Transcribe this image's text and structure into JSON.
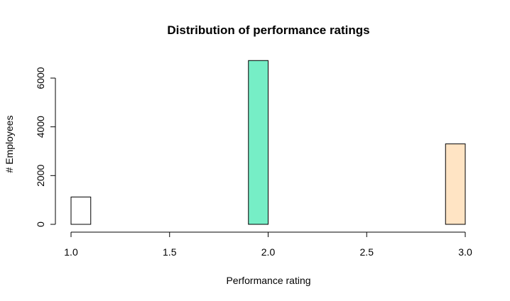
{
  "chart_data": {
    "type": "bar",
    "title": "Distribution of performance ratings",
    "xlabel": "Performance rating",
    "ylabel": "# Employees",
    "xlim": [
      1.0,
      3.0
    ],
    "ylim": [
      0,
      6000
    ],
    "xticks": [
      "1.0",
      "1.5",
      "2.0",
      "2.5",
      "3.0"
    ],
    "yticks": [
      "0",
      "2000",
      "4000",
      "6000"
    ],
    "bins": [
      {
        "x0": 1.0,
        "x1": 1.1,
        "value": 1120,
        "color": "#ffffff"
      },
      {
        "x0": 1.1,
        "x1": 1.2,
        "value": 0,
        "color": "#ffffff"
      },
      {
        "x0": 1.2,
        "x1": 1.3,
        "value": 0,
        "color": "#ffffff"
      },
      {
        "x0": 1.3,
        "x1": 1.4,
        "value": 0,
        "color": "#ffffff"
      },
      {
        "x0": 1.4,
        "x1": 1.5,
        "value": 0,
        "color": "#ffffff"
      },
      {
        "x0": 1.5,
        "x1": 1.6,
        "value": 0,
        "color": "#ffffff"
      },
      {
        "x0": 1.6,
        "x1": 1.7,
        "value": 0,
        "color": "#ffffff"
      },
      {
        "x0": 1.7,
        "x1": 1.8,
        "value": 0,
        "color": "#ffffff"
      },
      {
        "x0": 1.8,
        "x1": 1.9,
        "value": 0,
        "color": "#ffffff"
      },
      {
        "x0": 1.9,
        "x1": 2.0,
        "value": 6720,
        "color": "#76eec6"
      },
      {
        "x0": 2.0,
        "x1": 2.1,
        "value": 0,
        "color": "#ffffff"
      },
      {
        "x0": 2.1,
        "x1": 2.2,
        "value": 0,
        "color": "#ffffff"
      },
      {
        "x0": 2.2,
        "x1": 2.3,
        "value": 0,
        "color": "#ffffff"
      },
      {
        "x0": 2.3,
        "x1": 2.4,
        "value": 0,
        "color": "#ffffff"
      },
      {
        "x0": 2.4,
        "x1": 2.5,
        "value": 0,
        "color": "#ffffff"
      },
      {
        "x0": 2.5,
        "x1": 2.6,
        "value": 0,
        "color": "#ffffff"
      },
      {
        "x0": 2.6,
        "x1": 2.7,
        "value": 0,
        "color": "#ffffff"
      },
      {
        "x0": 2.7,
        "x1": 2.8,
        "value": 0,
        "color": "#ffffff"
      },
      {
        "x0": 2.8,
        "x1": 2.9,
        "value": 0,
        "color": "#ffffff"
      },
      {
        "x0": 2.9,
        "x1": 3.0,
        "value": 3300,
        "color": "#ffe4c4"
      }
    ]
  }
}
